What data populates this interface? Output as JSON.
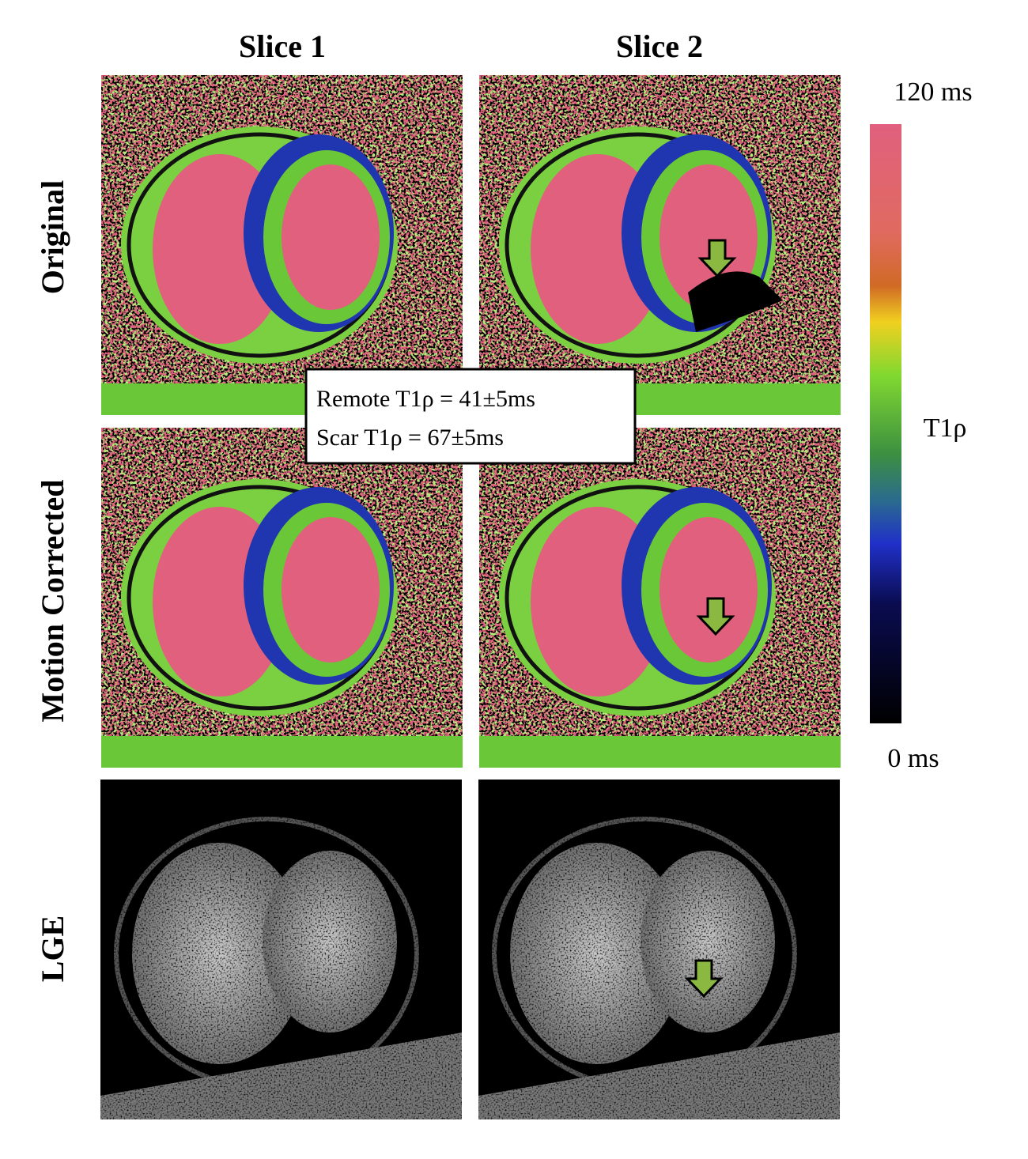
{
  "columns": [
    "Slice 1",
    "Slice 2"
  ],
  "rows": [
    "Original",
    "Motion Corrected",
    "LGE"
  ],
  "annotation": [
    "Remote T1ρ = 41±5ms",
    "Scar T1ρ = 67±5ms"
  ],
  "colorbar": {
    "max_label": "120 ms",
    "min_label": "0 ms",
    "label": "T1ρ"
  }
}
